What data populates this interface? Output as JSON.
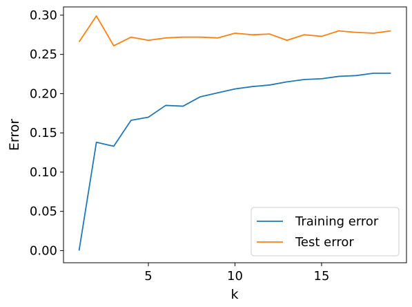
{
  "chart_data": {
    "type": "line",
    "xlabel": "k",
    "ylabel": "Error",
    "xlim": [
      0.1,
      19.9
    ],
    "ylim": [
      -0.0155,
      0.3105
    ],
    "x_ticks": [
      5,
      10,
      15
    ],
    "x_tick_labels": [
      "5",
      "10",
      "15"
    ],
    "y_ticks": [
      0.0,
      0.05,
      0.1,
      0.15,
      0.2,
      0.25,
      0.3
    ],
    "y_tick_labels": [
      "0.00",
      "0.05",
      "0.10",
      "0.15",
      "0.20",
      "0.25",
      "0.30"
    ],
    "grid": false,
    "legend_position": "lower-right",
    "x": [
      1,
      2,
      3,
      4,
      5,
      6,
      7,
      8,
      9,
      10,
      11,
      12,
      13,
      14,
      15,
      16,
      17,
      18,
      19
    ],
    "series": [
      {
        "name": "Training error",
        "color": "#1f77b4",
        "values": [
          0.0,
          0.138,
          0.133,
          0.166,
          0.17,
          0.185,
          0.184,
          0.196,
          0.201,
          0.206,
          0.209,
          0.211,
          0.215,
          0.218,
          0.219,
          0.222,
          0.223,
          0.226,
          0.226
        ]
      },
      {
        "name": "Test error",
        "color": "#ff7f0e",
        "values": [
          0.266,
          0.299,
          0.261,
          0.272,
          0.268,
          0.271,
          0.272,
          0.272,
          0.271,
          0.277,
          0.275,
          0.276,
          0.268,
          0.275,
          0.273,
          0.28,
          0.278,
          0.277,
          0.28
        ]
      }
    ]
  }
}
